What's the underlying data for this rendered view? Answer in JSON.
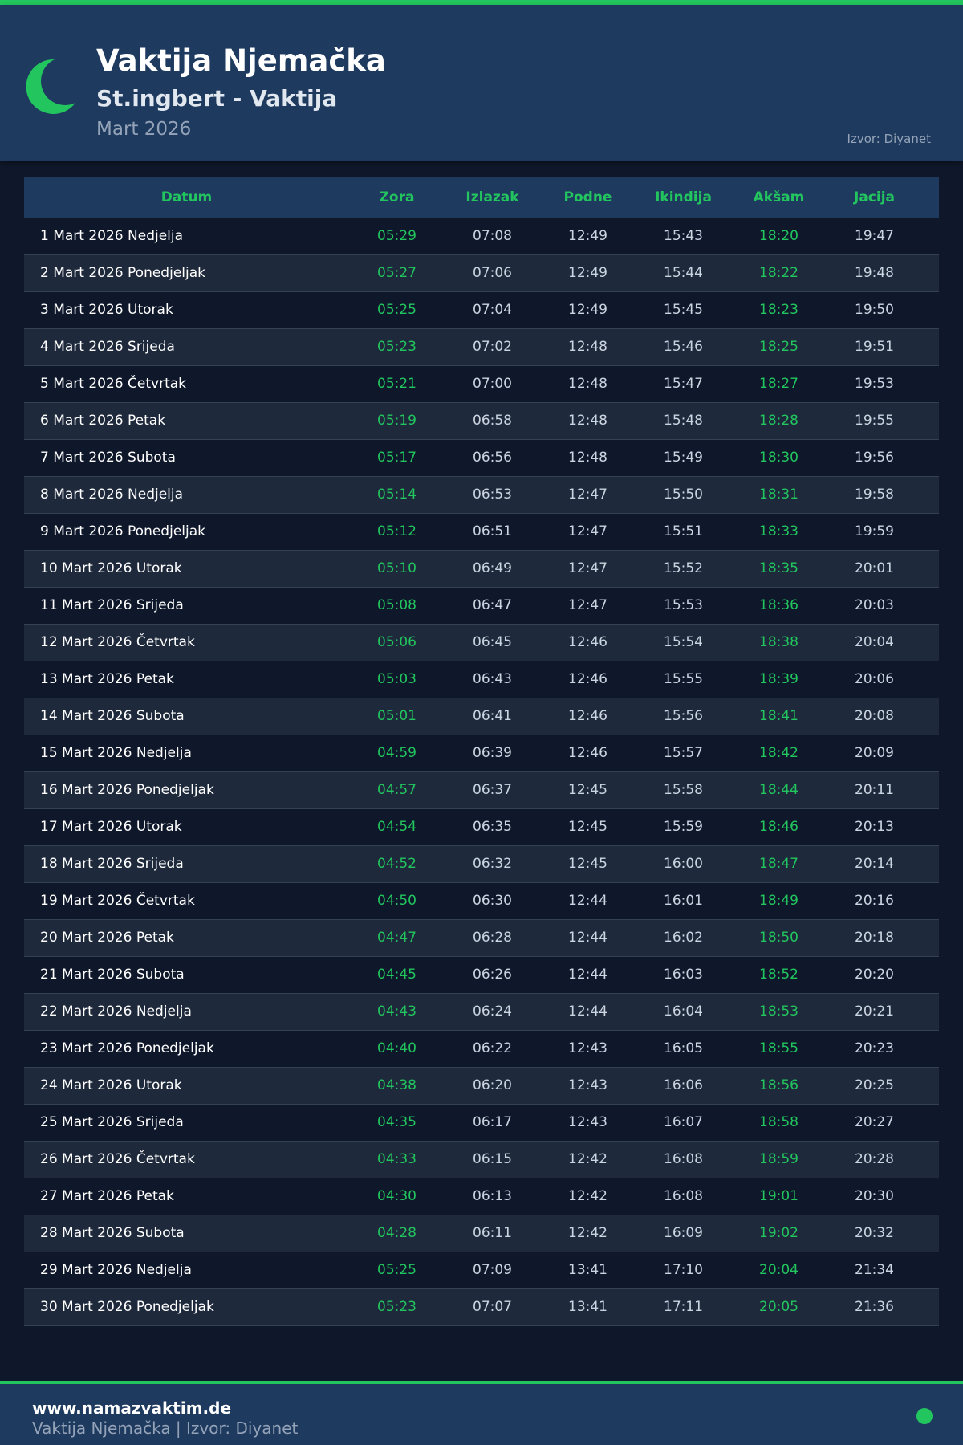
{
  "header": {
    "title": "Vaktija Njemačka",
    "subtitle": "St.ingbert - Vaktija",
    "month": "Mart 2026",
    "source": "Izvor: Diyanet"
  },
  "colors": {
    "accent": "#22c55e",
    "header_bg": "#1e3a5f",
    "page_bg": "#0f172a"
  },
  "icons": {
    "logo": "crescent-moon-icon",
    "footer": "green-dot"
  },
  "table": {
    "columns": [
      "Datum",
      "Zora",
      "Izlazak",
      "Podne",
      "Ikindija",
      "Akšam",
      "Jacija"
    ],
    "rows": [
      [
        "1 Mart 2026 Nedjelja",
        "05:29",
        "07:08",
        "12:49",
        "15:43",
        "18:20",
        "19:47"
      ],
      [
        "2 Mart 2026 Ponedjeljak",
        "05:27",
        "07:06",
        "12:49",
        "15:44",
        "18:22",
        "19:48"
      ],
      [
        "3 Mart 2026 Utorak",
        "05:25",
        "07:04",
        "12:49",
        "15:45",
        "18:23",
        "19:50"
      ],
      [
        "4 Mart 2026 Srijeda",
        "05:23",
        "07:02",
        "12:48",
        "15:46",
        "18:25",
        "19:51"
      ],
      [
        "5 Mart 2026 Četvrtak",
        "05:21",
        "07:00",
        "12:48",
        "15:47",
        "18:27",
        "19:53"
      ],
      [
        "6 Mart 2026 Petak",
        "05:19",
        "06:58",
        "12:48",
        "15:48",
        "18:28",
        "19:55"
      ],
      [
        "7 Mart 2026 Subota",
        "05:17",
        "06:56",
        "12:48",
        "15:49",
        "18:30",
        "19:56"
      ],
      [
        "8 Mart 2026 Nedjelja",
        "05:14",
        "06:53",
        "12:47",
        "15:50",
        "18:31",
        "19:58"
      ],
      [
        "9 Mart 2026 Ponedjeljak",
        "05:12",
        "06:51",
        "12:47",
        "15:51",
        "18:33",
        "19:59"
      ],
      [
        "10 Mart 2026 Utorak",
        "05:10",
        "06:49",
        "12:47",
        "15:52",
        "18:35",
        "20:01"
      ],
      [
        "11 Mart 2026 Srijeda",
        "05:08",
        "06:47",
        "12:47",
        "15:53",
        "18:36",
        "20:03"
      ],
      [
        "12 Mart 2026 Četvrtak",
        "05:06",
        "06:45",
        "12:46",
        "15:54",
        "18:38",
        "20:04"
      ],
      [
        "13 Mart 2026 Petak",
        "05:03",
        "06:43",
        "12:46",
        "15:55",
        "18:39",
        "20:06"
      ],
      [
        "14 Mart 2026 Subota",
        "05:01",
        "06:41",
        "12:46",
        "15:56",
        "18:41",
        "20:08"
      ],
      [
        "15 Mart 2026 Nedjelja",
        "04:59",
        "06:39",
        "12:46",
        "15:57",
        "18:42",
        "20:09"
      ],
      [
        "16 Mart 2026 Ponedjeljak",
        "04:57",
        "06:37",
        "12:45",
        "15:58",
        "18:44",
        "20:11"
      ],
      [
        "17 Mart 2026 Utorak",
        "04:54",
        "06:35",
        "12:45",
        "15:59",
        "18:46",
        "20:13"
      ],
      [
        "18 Mart 2026 Srijeda",
        "04:52",
        "06:32",
        "12:45",
        "16:00",
        "18:47",
        "20:14"
      ],
      [
        "19 Mart 2026 Četvrtak",
        "04:50",
        "06:30",
        "12:44",
        "16:01",
        "18:49",
        "20:16"
      ],
      [
        "20 Mart 2026 Petak",
        "04:47",
        "06:28",
        "12:44",
        "16:02",
        "18:50",
        "20:18"
      ],
      [
        "21 Mart 2026 Subota",
        "04:45",
        "06:26",
        "12:44",
        "16:03",
        "18:52",
        "20:20"
      ],
      [
        "22 Mart 2026 Nedjelja",
        "04:43",
        "06:24",
        "12:44",
        "16:04",
        "18:53",
        "20:21"
      ],
      [
        "23 Mart 2026 Ponedjeljak",
        "04:40",
        "06:22",
        "12:43",
        "16:05",
        "18:55",
        "20:23"
      ],
      [
        "24 Mart 2026 Utorak",
        "04:38",
        "06:20",
        "12:43",
        "16:06",
        "18:56",
        "20:25"
      ],
      [
        "25 Mart 2026 Srijeda",
        "04:35",
        "06:17",
        "12:43",
        "16:07",
        "18:58",
        "20:27"
      ],
      [
        "26 Mart 2026 Četvrtak",
        "04:33",
        "06:15",
        "12:42",
        "16:08",
        "18:59",
        "20:28"
      ],
      [
        "27 Mart 2026 Petak",
        "04:30",
        "06:13",
        "12:42",
        "16:08",
        "19:01",
        "20:30"
      ],
      [
        "28 Mart 2026 Subota",
        "04:28",
        "06:11",
        "12:42",
        "16:09",
        "19:02",
        "20:32"
      ],
      [
        "29 Mart 2026 Nedjelja",
        "05:25",
        "07:09",
        "13:41",
        "17:10",
        "20:04",
        "21:34"
      ],
      [
        "30 Mart 2026 Ponedjeljak",
        "05:23",
        "07:07",
        "13:41",
        "17:11",
        "20:05",
        "21:36"
      ]
    ]
  },
  "footer": {
    "site": "www.namazvaktim.de",
    "text": "Vaktija Njemačka | Izvor: Diyanet"
  }
}
